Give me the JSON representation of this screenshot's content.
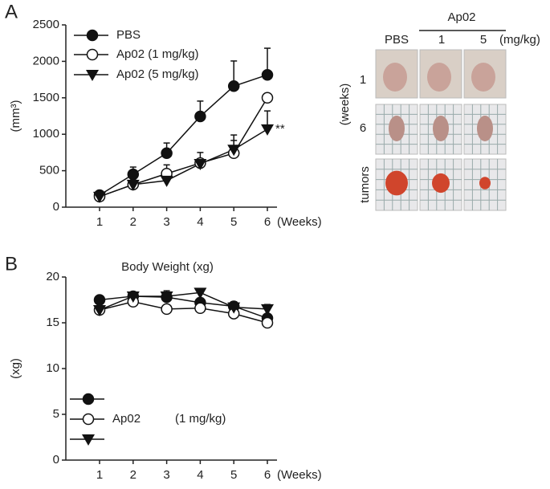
{
  "chart_data": [
    {
      "type": "line",
      "panel": "A",
      "ylabel": "(mm³)",
      "xlabel": "(Weeks)",
      "categories": [
        "1",
        "2",
        "3",
        "4",
        "5",
        "6"
      ],
      "ylim": [
        0,
        2500
      ],
      "yticks": [
        0,
        500,
        1000,
        1500,
        2000,
        2500
      ],
      "series": [
        {
          "name": "PBS",
          "marker": "circle-filled",
          "color": "#111",
          "values": [
            165,
            450,
            740,
            1245,
            1660,
            1815
          ],
          "errors": [
            30,
            100,
            140,
            210,
            345,
            365
          ]
        },
        {
          "name": "Ap02 (1 mg/kg)",
          "marker": "circle-open",
          "color": "#111",
          "values": [
            145,
            310,
            460,
            605,
            740,
            1500
          ],
          "errors": [
            20,
            40,
            120,
            145,
            175,
            60
          ]
        },
        {
          "name": "Ap02 (5 mg/kg)",
          "marker": "triangle-down",
          "color": "#111",
          "values": [
            145,
            310,
            365,
            595,
            790,
            1070
          ],
          "errors": [
            20,
            40,
            40,
            60,
            200,
            250
          ]
        }
      ],
      "annotation": "**"
    },
    {
      "type": "line",
      "panel": "B",
      "title": "Body Weight (xg)",
      "ylabel": "(xg)",
      "xlabel": "(Weeks)",
      "categories": [
        "1",
        "2",
        "3",
        "4",
        "5",
        "6"
      ],
      "ylim": [
        0,
        20
      ],
      "yticks": [
        0,
        5,
        10,
        15,
        20
      ],
      "series": [
        {
          "marker": "circle-filled",
          "color": "#111",
          "values": [
            17.5,
            17.9,
            17.8,
            17.2,
            16.8,
            15.5
          ],
          "errors": [
            0.2,
            0.4,
            0.4,
            0.5,
            0.5,
            0.4
          ]
        },
        {
          "name": "Ap02",
          "name_note": "(1 mg/kg)",
          "marker": "circle-open",
          "color": "#111",
          "values": [
            16.4,
            17.3,
            16.5,
            16.6,
            16.0,
            15.0
          ],
          "errors": [
            0.2,
            0.3,
            0.3,
            0.3,
            0.3,
            0.3
          ]
        },
        {
          "marker": "triangle-down",
          "color": "#111",
          "values": [
            16.4,
            17.9,
            17.9,
            18.3,
            16.7,
            16.5
          ],
          "errors": [
            0.2,
            0.3,
            0.6,
            0.3,
            0.4,
            0.5
          ]
        }
      ]
    }
  ],
  "photo_panel": {
    "group": "Ap02",
    "columns": [
      "PBS",
      "1",
      "5"
    ],
    "unit": "(mg/kg)",
    "rows": [
      "1",
      "6",
      "tumors"
    ],
    "row_axis": "(weeks)"
  }
}
